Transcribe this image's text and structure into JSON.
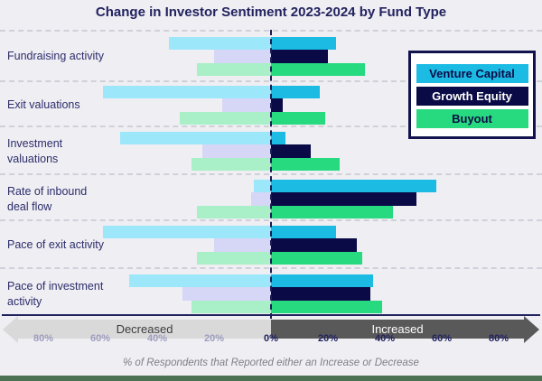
{
  "title": "Change in Investor Sentiment 2023-2024 by Fund Type",
  "legend": {
    "items": [
      {
        "label": "Venture Capital",
        "color": "#1CBBE4",
        "text_color": "#0A0A46"
      },
      {
        "label": "Growth Equity",
        "color": "#0A0A46",
        "text_color": "#FFFFFF"
      },
      {
        "label": "Buyout",
        "color": "#27DA80",
        "text_color": "#0A0A46"
      }
    ]
  },
  "axis": {
    "tick_labels_left": [
      "80%",
      "60%",
      "40%",
      "20%"
    ],
    "tick_label_zero": "0%",
    "tick_labels_right": [
      "20%",
      "40%",
      "60%",
      "80%"
    ]
  },
  "arrow": {
    "decreased": "Decreased",
    "increased": "Increased"
  },
  "footnote": "% of Respondents that Reported either an Increase or Decrease",
  "chart_data": {
    "type": "bar",
    "subtype": "diverging-horizontal",
    "title": "Change in Investor Sentiment 2023-2024 by Fund Type",
    "xlabel": "% of Respondents that Reported either an Increase or Decrease",
    "x_axis_range": [
      -80,
      80
    ],
    "x_tick_step": 20,
    "units": "% of respondents",
    "categories": [
      "Fundraising activity",
      "Exit valuations",
      "Investment\nvaluations",
      "Rate of inbound\ndeal flow",
      "Pace of exit activity",
      "Pace of investment\nactivity"
    ],
    "series": [
      {
        "name": "Venture Capital",
        "color": "#1CBBE4",
        "pale_color": "#9DE7FA",
        "decreased": [
          36,
          59,
          53,
          6,
          59,
          50
        ],
        "increased": [
          23,
          17,
          5,
          58,
          23,
          36
        ]
      },
      {
        "name": "Growth Equity",
        "color": "#0A0A46",
        "pale_color": "#D6D6F6",
        "decreased": [
          20,
          17,
          24,
          7,
          20,
          31
        ],
        "increased": [
          20,
          4,
          14,
          51,
          30,
          35
        ]
      },
      {
        "name": "Buyout",
        "color": "#27DA80",
        "pale_color": "#A9EFC7",
        "decreased": [
          26,
          32,
          28,
          26,
          26,
          28
        ],
        "increased": [
          33,
          19,
          24,
          43,
          32,
          39
        ]
      }
    ],
    "legend_position": "upper right",
    "grid": "dashed horizontal row separators",
    "zero_line": "dashed vertical at 0%"
  }
}
